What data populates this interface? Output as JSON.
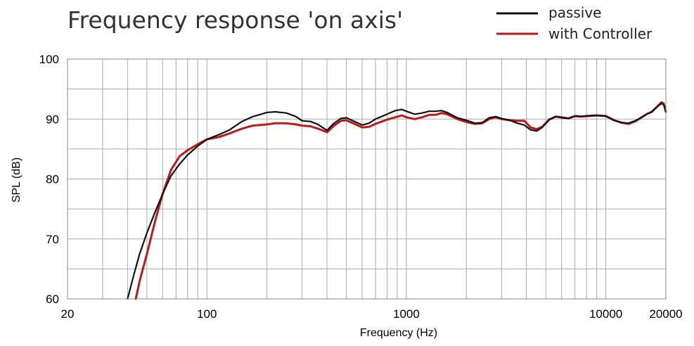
{
  "chart_data": {
    "type": "line",
    "title": "Frequency response 'on axis'",
    "xlabel": "Frequency (Hz)",
    "ylabel": "SPL (dB)",
    "xscale": "log",
    "xlim": [
      20,
      20000
    ],
    "ylim": [
      60,
      100
    ],
    "grid": true,
    "legend_position": "top-right",
    "x_tick_labels": [
      "20",
      "100",
      "1000",
      "10000",
      "20000"
    ],
    "x_tick_values": [
      20,
      100,
      1000,
      10000,
      20000
    ],
    "y_tick_labels": [
      "60",
      "70",
      "80",
      "90",
      "100"
    ],
    "y_tick_values": [
      60,
      70,
      80,
      90,
      100
    ],
    "series": [
      {
        "name": "passive",
        "color": "#111111",
        "points": [
          [
            40,
            60
          ],
          [
            43,
            64
          ],
          [
            46,
            67.5
          ],
          [
            50,
            71
          ],
          [
            55,
            74.5
          ],
          [
            60,
            77.5
          ],
          [
            66,
            80.5
          ],
          [
            73,
            82.5
          ],
          [
            80,
            84
          ],
          [
            90,
            85.5
          ],
          [
            100,
            86.6
          ],
          [
            115,
            87.4
          ],
          [
            130,
            88.2
          ],
          [
            150,
            89.6
          ],
          [
            170,
            90.4
          ],
          [
            200,
            91.1
          ],
          [
            220,
            91.2
          ],
          [
            250,
            91
          ],
          [
            280,
            90.4
          ],
          [
            300,
            89.7
          ],
          [
            330,
            89.6
          ],
          [
            360,
            89.1
          ],
          [
            400,
            88.1
          ],
          [
            430,
            89.2
          ],
          [
            470,
            90.1
          ],
          [
            500,
            90.2
          ],
          [
            550,
            89.6
          ],
          [
            600,
            89
          ],
          [
            650,
            89.3
          ],
          [
            700,
            90
          ],
          [
            800,
            90.8
          ],
          [
            880,
            91.4
          ],
          [
            950,
            91.6
          ],
          [
            1000,
            91.3
          ],
          [
            1100,
            90.8
          ],
          [
            1200,
            91
          ],
          [
            1300,
            91.3
          ],
          [
            1400,
            91.3
          ],
          [
            1500,
            91.4
          ],
          [
            1600,
            91.1
          ],
          [
            1800,
            90.2
          ],
          [
            2000,
            89.8
          ],
          [
            2200,
            89.3
          ],
          [
            2400,
            89.4
          ],
          [
            2600,
            90.2
          ],
          [
            2800,
            90.4
          ],
          [
            3000,
            90.1
          ],
          [
            3300,
            89.8
          ],
          [
            3600,
            89.3
          ],
          [
            3900,
            89
          ],
          [
            4200,
            88.2
          ],
          [
            4500,
            88
          ],
          [
            4800,
            88.6
          ],
          [
            5200,
            89.9
          ],
          [
            5600,
            90.4
          ],
          [
            6000,
            90.2
          ],
          [
            6500,
            90.1
          ],
          [
            7000,
            90.5
          ],
          [
            7500,
            90.4
          ],
          [
            8000,
            90.5
          ],
          [
            9000,
            90.6
          ],
          [
            10000,
            90.5
          ],
          [
            11000,
            89.8
          ],
          [
            12000,
            89.4
          ],
          [
            13000,
            89.3
          ],
          [
            14000,
            89.7
          ],
          [
            15000,
            90.2
          ],
          [
            16000,
            90.8
          ],
          [
            17000,
            91.2
          ],
          [
            18000,
            92
          ],
          [
            19000,
            92.6
          ],
          [
            19500,
            92.4
          ],
          [
            20000,
            91.2
          ]
        ]
      },
      {
        "name": "with Controller",
        "color": "#b71c1c",
        "points": [
          [
            44,
            60
          ],
          [
            46,
            63
          ],
          [
            50,
            67.5
          ],
          [
            55,
            73
          ],
          [
            60,
            77.5
          ],
          [
            66,
            81.5
          ],
          [
            73,
            83.8
          ],
          [
            80,
            84.8
          ],
          [
            90,
            85.8
          ],
          [
            100,
            86.6
          ],
          [
            115,
            87
          ],
          [
            130,
            87.6
          ],
          [
            150,
            88.4
          ],
          [
            170,
            88.9
          ],
          [
            200,
            89.1
          ],
          [
            220,
            89.3
          ],
          [
            250,
            89.3
          ],
          [
            280,
            89.1
          ],
          [
            300,
            88.9
          ],
          [
            330,
            88.8
          ],
          [
            360,
            88.4
          ],
          [
            400,
            87.8
          ],
          [
            430,
            88.8
          ],
          [
            470,
            89.7
          ],
          [
            500,
            89.8
          ],
          [
            550,
            89.2
          ],
          [
            600,
            88.6
          ],
          [
            650,
            88.7
          ],
          [
            700,
            89.2
          ],
          [
            800,
            89.9
          ],
          [
            880,
            90.3
          ],
          [
            950,
            90.6
          ],
          [
            1000,
            90.3
          ],
          [
            1100,
            90
          ],
          [
            1200,
            90.3
          ],
          [
            1300,
            90.7
          ],
          [
            1400,
            90.7
          ],
          [
            1500,
            91
          ],
          [
            1600,
            90.8
          ],
          [
            1800,
            90
          ],
          [
            2000,
            89.5
          ],
          [
            2200,
            89.2
          ],
          [
            2400,
            89.3
          ],
          [
            2600,
            90
          ],
          [
            2800,
            90.3
          ],
          [
            3000,
            90
          ],
          [
            3300,
            89.8
          ],
          [
            3600,
            89.7
          ],
          [
            3900,
            89.7
          ],
          [
            4200,
            88.6
          ],
          [
            4500,
            88.3
          ],
          [
            4800,
            88.7
          ],
          [
            5200,
            89.9
          ],
          [
            5600,
            90.4
          ],
          [
            6000,
            90.3
          ],
          [
            6500,
            90.1
          ],
          [
            7000,
            90.5
          ],
          [
            7500,
            90.4
          ],
          [
            8000,
            90.5
          ],
          [
            9000,
            90.6
          ],
          [
            10000,
            90.5
          ],
          [
            11000,
            89.8
          ],
          [
            12000,
            89.4
          ],
          [
            13000,
            89.2
          ],
          [
            14000,
            89.6
          ],
          [
            15000,
            90.2
          ],
          [
            16000,
            90.8
          ],
          [
            17000,
            91.2
          ],
          [
            18000,
            92
          ],
          [
            19000,
            92.8
          ],
          [
            19500,
            92.6
          ],
          [
            20000,
            91.2
          ]
        ]
      }
    ]
  }
}
